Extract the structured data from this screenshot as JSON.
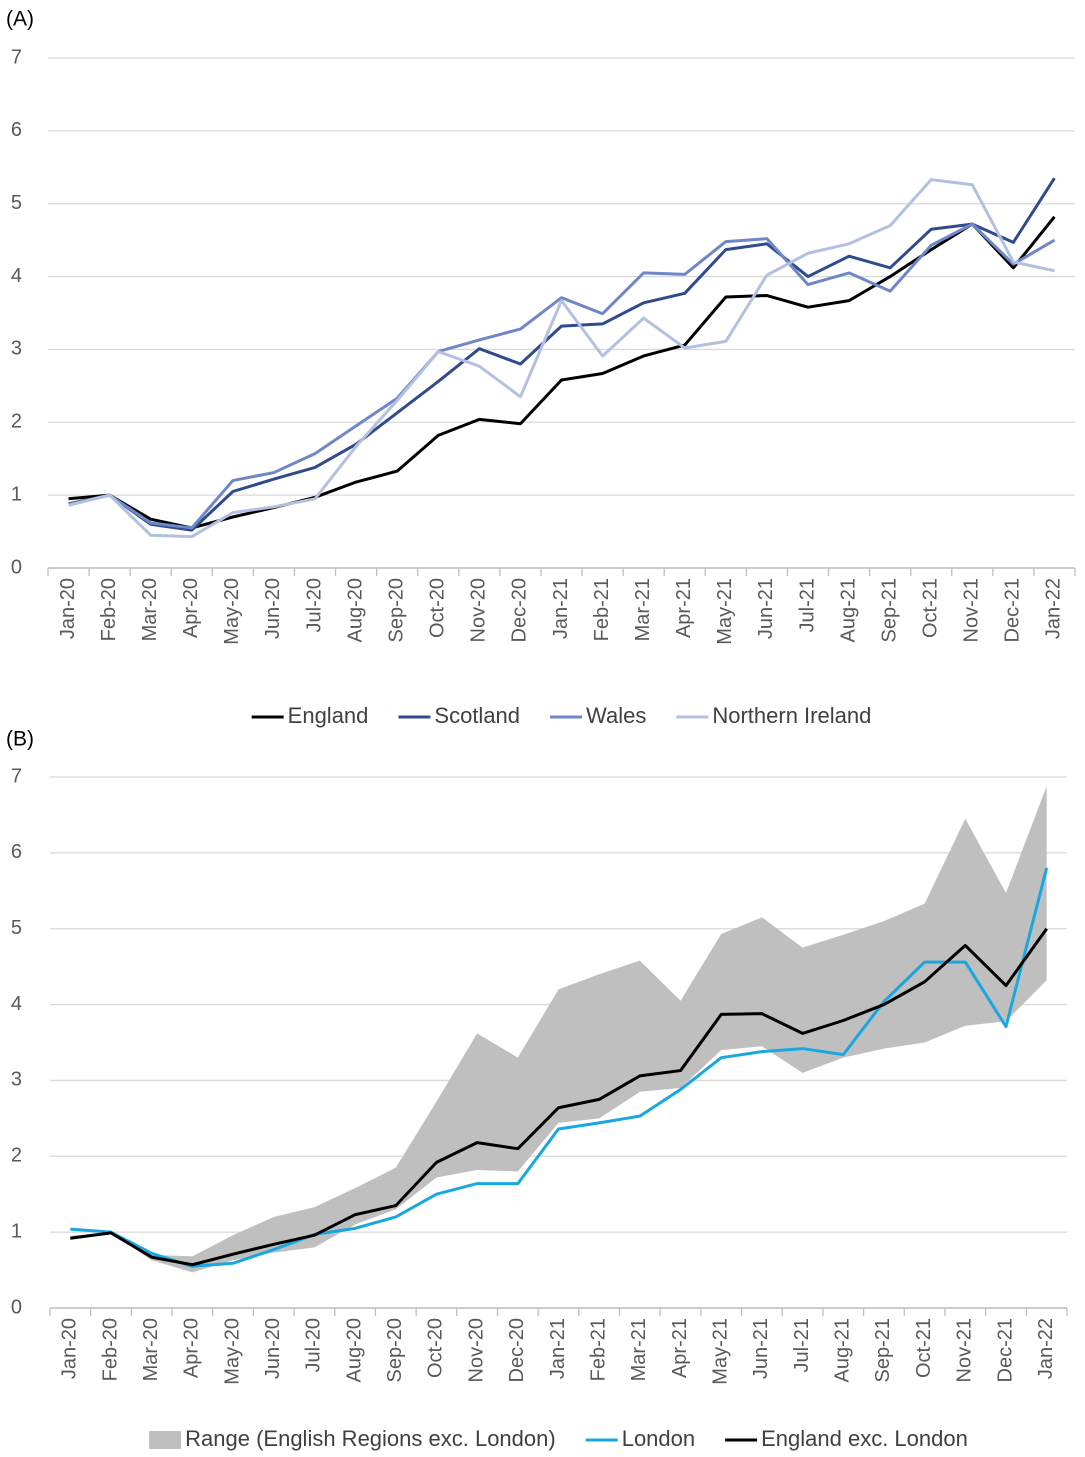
{
  "chart_data": [
    {
      "type": "line",
      "label": "(A)",
      "categories": [
        "Jan-20",
        "Feb-20",
        "Mar-20",
        "Apr-20",
        "May-20",
        "Jun-20",
        "Jul-20",
        "Aug-20",
        "Sep-20",
        "Oct-20",
        "Nov-20",
        "Dec-20",
        "Jan-21",
        "Feb-21",
        "Mar-21",
        "Apr-21",
        "May-21",
        "Jun-21",
        "Jul-21",
        "Aug-21",
        "Sep-21",
        "Oct-21",
        "Nov-21",
        "Dec-21",
        "Jan-22"
      ],
      "ylim": [
        0,
        7
      ],
      "yticks": [
        0,
        1,
        2,
        3,
        4,
        5,
        6,
        7
      ],
      "grid": true,
      "legend": "bottom",
      "series": [
        {
          "name": "England",
          "color": "#000000",
          "values": [
            0.95,
            1.0,
            0.67,
            0.55,
            0.7,
            0.83,
            0.97,
            1.18,
            1.33,
            1.82,
            2.04,
            1.98,
            2.58,
            2.67,
            2.91,
            3.06,
            3.72,
            3.74,
            3.58,
            3.67,
            4.0,
            4.37,
            4.72,
            4.12,
            4.82
          ]
        },
        {
          "name": "Scotland",
          "color": "#2f4b8c",
          "values": [
            0.88,
            1.0,
            0.6,
            0.52,
            1.05,
            1.22,
            1.38,
            1.7,
            2.13,
            2.56,
            3.01,
            2.8,
            3.32,
            3.35,
            3.64,
            3.77,
            4.37,
            4.45,
            4.0,
            4.28,
            4.12,
            4.65,
            4.72,
            4.47,
            5.35
          ]
        },
        {
          "name": "Wales",
          "color": "#6f87c6",
          "values": [
            0.87,
            1.0,
            0.62,
            0.55,
            1.2,
            1.31,
            1.57,
            1.95,
            2.33,
            2.97,
            3.13,
            3.28,
            3.71,
            3.49,
            4.05,
            4.03,
            4.48,
            4.52,
            3.89,
            4.05,
            3.8,
            4.43,
            4.72,
            4.17,
            4.5
          ]
        },
        {
          "name": "Northern Ireland",
          "color": "#b3c0e0",
          "values": [
            0.86,
            1.0,
            0.45,
            0.43,
            0.76,
            0.84,
            0.95,
            1.67,
            2.3,
            2.97,
            2.77,
            2.35,
            3.67,
            2.91,
            3.43,
            3.02,
            3.11,
            4.02,
            4.32,
            4.45,
            4.7,
            5.33,
            5.26,
            4.2,
            4.08
          ]
        }
      ]
    },
    {
      "type": "line",
      "label": "(B)",
      "categories": [
        "Jan-20",
        "Feb-20",
        "Mar-20",
        "Apr-20",
        "May-20",
        "Jun-20",
        "Jul-20",
        "Aug-20",
        "Sep-20",
        "Oct-20",
        "Nov-20",
        "Dec-20",
        "Jan-21",
        "Feb-21",
        "Mar-21",
        "Apr-21",
        "May-21",
        "Jun-21",
        "Jul-21",
        "Aug-21",
        "Sep-21",
        "Oct-21",
        "Nov-21",
        "Dec-21",
        "Jan-22"
      ],
      "ylim": [
        0,
        7
      ],
      "yticks": [
        0,
        1,
        2,
        3,
        4,
        5,
        6,
        7
      ],
      "grid": true,
      "legend": "bottom",
      "series": [
        {
          "name": "Range (English Regions exc. London)",
          "color": "#bfbfbf",
          "type": "range",
          "low": [
            0.9,
            0.99,
            0.63,
            0.47,
            0.63,
            0.73,
            0.8,
            1.1,
            1.3,
            1.72,
            1.82,
            1.8,
            2.44,
            2.5,
            2.85,
            2.9,
            3.4,
            3.45,
            3.1,
            3.3,
            3.42,
            3.5,
            3.72,
            3.78,
            4.32
          ],
          "high": [
            0.95,
            1.0,
            0.7,
            0.68,
            0.96,
            1.2,
            1.33,
            1.58,
            1.85,
            2.72,
            3.62,
            3.3,
            4.2,
            4.4,
            4.58,
            4.05,
            4.93,
            5.15,
            4.75,
            4.92,
            5.1,
            5.33,
            6.45,
            5.47,
            6.88
          ]
        },
        {
          "name": "London",
          "color": "#1aa7e0",
          "values": [
            1.04,
            1.0,
            0.72,
            0.55,
            0.59,
            0.77,
            0.97,
            1.05,
            1.2,
            1.5,
            1.64,
            1.64,
            2.36,
            2.44,
            2.53,
            2.88,
            3.3,
            3.38,
            3.42,
            3.34,
            4.04,
            4.56,
            4.56,
            3.71,
            5.8
          ]
        },
        {
          "name": "England exc. London",
          "color": "#000000",
          "values": [
            0.92,
            0.99,
            0.67,
            0.57,
            0.71,
            0.84,
            0.96,
            1.23,
            1.35,
            1.92,
            2.18,
            2.1,
            2.64,
            2.75,
            3.06,
            3.13,
            3.87,
            3.88,
            3.62,
            3.79,
            4.0,
            4.3,
            4.78,
            4.25,
            5.0
          ]
        }
      ]
    }
  ]
}
